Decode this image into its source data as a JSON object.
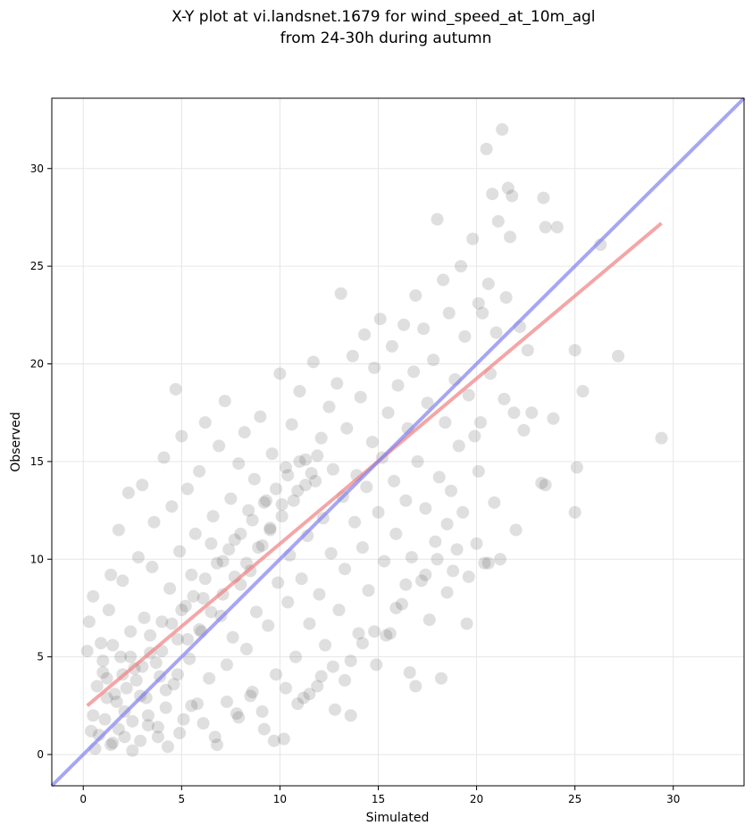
{
  "chart_data": {
    "type": "scatter",
    "title": "X-Y plot at vi.landsnet.1679 for wind_speed_at_10m_agl\nfrom 24-30h during autumn",
    "xlabel": "Simulated",
    "ylabel": "Observed",
    "xlim": [
      -1.6,
      33.6
    ],
    "ylim": [
      -1.6,
      33.6
    ],
    "xticks": [
      0,
      5,
      10,
      15,
      20,
      25,
      30
    ],
    "yticks": [
      0,
      5,
      10,
      15,
      20,
      25,
      30
    ],
    "grid": true,
    "legend": "none",
    "points_sample": [
      [
        0.2,
        5.3
      ],
      [
        0.3,
        6.8
      ],
      [
        0.5,
        8.1
      ],
      [
        0.5,
        2.0
      ],
      [
        0.7,
        3.5
      ],
      [
        0.8,
        1.0
      ],
      [
        0.9,
        5.7
      ],
      [
        1.0,
        4.2
      ],
      [
        1.2,
        2.9
      ],
      [
        1.3,
        7.4
      ],
      [
        1.4,
        9.2
      ],
      [
        1.5,
        0.6
      ],
      [
        1.6,
        3.1
      ],
      [
        1.8,
        11.5
      ],
      [
        1.9,
        5.0
      ],
      [
        2.0,
        8.9
      ],
      [
        2.1,
        2.2
      ],
      [
        2.3,
        13.4
      ],
      [
        2.4,
        6.3
      ],
      [
        2.5,
        0.2
      ],
      [
        2.6,
        4.4
      ],
      [
        2.8,
        10.1
      ],
      [
        2.9,
        3.0
      ],
      [
        3.0,
        13.8
      ],
      [
        3.1,
        7.0
      ],
      [
        3.3,
        1.5
      ],
      [
        3.4,
        5.2
      ],
      [
        3.5,
        9.6
      ],
      [
        3.6,
        11.9
      ],
      [
        3.8,
        0.9
      ],
      [
        3.9,
        4.0
      ],
      [
        4.0,
        6.8
      ],
      [
        4.1,
        15.2
      ],
      [
        4.2,
        2.4
      ],
      [
        4.4,
        8.5
      ],
      [
        4.5,
        12.7
      ],
      [
        4.6,
        3.6
      ],
      [
        4.7,
        18.7
      ],
      [
        4.8,
        5.9
      ],
      [
        4.9,
        10.4
      ],
      [
        5.0,
        16.3
      ],
      [
        5.1,
        1.8
      ],
      [
        5.2,
        7.6
      ],
      [
        5.3,
        13.6
      ],
      [
        5.4,
        4.9
      ],
      [
        5.5,
        9.2
      ],
      [
        5.7,
        11.3
      ],
      [
        5.8,
        2.6
      ],
      [
        5.9,
        14.5
      ],
      [
        6.0,
        6.3
      ],
      [
        6.1,
        8.0
      ],
      [
        6.2,
        17.0
      ],
      [
        6.4,
        3.9
      ],
      [
        6.5,
        10.8
      ],
      [
        6.6,
        12.2
      ],
      [
        6.8,
        0.5
      ],
      [
        6.9,
        15.8
      ],
      [
        7.0,
        7.1
      ],
      [
        7.1,
        9.9
      ],
      [
        7.2,
        18.1
      ],
      [
        7.3,
        4.6
      ],
      [
        7.5,
        13.1
      ],
      [
        7.6,
        6.0
      ],
      [
        7.7,
        11.0
      ],
      [
        7.8,
        2.1
      ],
      [
        7.9,
        14.9
      ],
      [
        8.0,
        8.7
      ],
      [
        8.2,
        16.5
      ],
      [
        8.3,
        5.4
      ],
      [
        8.4,
        12.5
      ],
      [
        8.5,
        9.4
      ],
      [
        8.6,
        3.2
      ],
      [
        8.7,
        14.1
      ],
      [
        8.8,
        7.3
      ],
      [
        9.0,
        17.3
      ],
      [
        9.1,
        10.7
      ],
      [
        9.2,
        1.3
      ],
      [
        9.3,
        13.0
      ],
      [
        9.4,
        6.6
      ],
      [
        9.5,
        11.6
      ],
      [
        9.6,
        15.4
      ],
      [
        9.8,
        4.1
      ],
      [
        9.9,
        8.8
      ],
      [
        10.0,
        19.5
      ],
      [
        10.1,
        12.8
      ],
      [
        10.2,
        0.8
      ],
      [
        10.3,
        14.7
      ],
      [
        10.4,
        7.8
      ],
      [
        10.5,
        10.2
      ],
      [
        10.6,
        16.9
      ],
      [
        10.8,
        5.0
      ],
      [
        10.9,
        13.5
      ],
      [
        11.0,
        18.6
      ],
      [
        11.1,
        9.0
      ],
      [
        11.2,
        2.9
      ],
      [
        11.3,
        15.1
      ],
      [
        11.4,
        11.2
      ],
      [
        11.5,
        6.7
      ],
      [
        11.7,
        20.1
      ],
      [
        11.8,
        14.0
      ],
      [
        11.9,
        3.5
      ],
      [
        12.0,
        8.2
      ],
      [
        12.1,
        16.2
      ],
      [
        12.2,
        12.1
      ],
      [
        12.3,
        5.6
      ],
      [
        12.5,
        17.8
      ],
      [
        12.6,
        10.3
      ],
      [
        12.7,
        14.6
      ],
      [
        12.8,
        2.3
      ],
      [
        12.9,
        19.0
      ],
      [
        13.0,
        7.4
      ],
      [
        13.1,
        23.6
      ],
      [
        13.2,
        13.2
      ],
      [
        13.3,
        9.5
      ],
      [
        13.4,
        16.7
      ],
      [
        13.6,
        4.8
      ],
      [
        13.7,
        20.4
      ],
      [
        13.8,
        11.9
      ],
      [
        13.9,
        14.3
      ],
      [
        14.0,
        6.2
      ],
      [
        14.1,
        18.3
      ],
      [
        14.2,
        10.6
      ],
      [
        14.3,
        21.5
      ],
      [
        14.4,
        13.7
      ],
      [
        14.5,
        8.4
      ],
      [
        14.7,
        16.0
      ],
      [
        14.8,
        19.8
      ],
      [
        14.9,
        4.6
      ],
      [
        15.0,
        12.4
      ],
      [
        15.1,
        22.3
      ],
      [
        15.2,
        15.2
      ],
      [
        15.3,
        9.9
      ],
      [
        15.5,
        17.5
      ],
      [
        15.6,
        6.2
      ],
      [
        15.7,
        20.9
      ],
      [
        15.8,
        14.0
      ],
      [
        15.9,
        11.3
      ],
      [
        16.0,
        18.9
      ],
      [
        16.2,
        7.7
      ],
      [
        16.3,
        22.0
      ],
      [
        16.4,
        13.0
      ],
      [
        16.5,
        16.7
      ],
      [
        16.6,
        4.2
      ],
      [
        16.7,
        10.1
      ],
      [
        16.8,
        19.6
      ],
      [
        16.9,
        23.5
      ],
      [
        17.0,
        15.0
      ],
      [
        17.2,
        8.9
      ],
      [
        17.3,
        21.8
      ],
      [
        17.4,
        12.6
      ],
      [
        17.5,
        18.0
      ],
      [
        17.6,
        6.9
      ],
      [
        17.8,
        20.2
      ],
      [
        17.9,
        10.9
      ],
      [
        18.0,
        27.4
      ],
      [
        18.1,
        14.2
      ],
      [
        18.2,
        3.9
      ],
      [
        18.3,
        24.3
      ],
      [
        18.4,
        17.0
      ],
      [
        18.5,
        11.8
      ],
      [
        18.6,
        22.6
      ],
      [
        18.7,
        13.5
      ],
      [
        18.8,
        9.4
      ],
      [
        18.9,
        19.2
      ],
      [
        19.1,
        15.8
      ],
      [
        19.2,
        25.0
      ],
      [
        19.3,
        12.4
      ],
      [
        19.4,
        21.4
      ],
      [
        19.5,
        6.7
      ],
      [
        19.6,
        18.4
      ],
      [
        19.8,
        26.4
      ],
      [
        19.9,
        16.3
      ],
      [
        20.0,
        10.8
      ],
      [
        20.1,
        23.1
      ],
      [
        20.2,
        17.0
      ],
      [
        20.3,
        22.6
      ],
      [
        20.4,
        9.8
      ],
      [
        20.5,
        31.0
      ],
      [
        20.6,
        24.1
      ],
      [
        20.7,
        19.5
      ],
      [
        20.8,
        28.7
      ],
      [
        20.9,
        12.9
      ],
      [
        21.0,
        21.6
      ],
      [
        21.1,
        27.3
      ],
      [
        21.2,
        10.0
      ],
      [
        21.3,
        32.0
      ],
      [
        21.4,
        18.2
      ],
      [
        21.5,
        23.4
      ],
      [
        21.6,
        29.0
      ],
      [
        21.7,
        26.5
      ],
      [
        21.8,
        28.6
      ],
      [
        21.9,
        17.5
      ],
      [
        22.0,
        11.5
      ],
      [
        22.2,
        21.9
      ],
      [
        22.4,
        16.6
      ],
      [
        22.6,
        20.7
      ],
      [
        22.8,
        17.5
      ],
      [
        23.3,
        13.9
      ],
      [
        23.4,
        28.5
      ],
      [
        23.5,
        27.0
      ],
      [
        23.9,
        17.2
      ],
      [
        24.1,
        27.0
      ],
      [
        25.0,
        20.7
      ],
      [
        25.1,
        14.7
      ],
      [
        25.0,
        12.4
      ],
      [
        25.4,
        18.6
      ],
      [
        26.3,
        26.1
      ],
      [
        27.2,
        20.4
      ],
      [
        29.4,
        16.2
      ],
      [
        23.5,
        13.8
      ],
      [
        1.0,
        4.8
      ],
      [
        1.2,
        3.9
      ],
      [
        1.5,
        5.6
      ],
      [
        1.7,
        2.7
      ],
      [
        2.0,
        4.1
      ],
      [
        2.2,
        3.4
      ],
      [
        2.4,
        5.0
      ],
      [
        2.7,
        3.8
      ],
      [
        3.0,
        4.5
      ],
      [
        3.2,
        2.9
      ],
      [
        3.4,
        6.1
      ],
      [
        3.7,
        4.7
      ],
      [
        4.0,
        5.3
      ],
      [
        4.2,
        3.3
      ],
      [
        4.5,
        6.7
      ],
      [
        4.8,
        4.1
      ],
      [
        5.0,
        7.4
      ],
      [
        5.3,
        5.9
      ],
      [
        5.6,
        8.1
      ],
      [
        5.9,
        6.4
      ],
      [
        6.2,
        9.0
      ],
      [
        6.5,
        7.3
      ],
      [
        6.8,
        9.8
      ],
      [
        7.1,
        8.2
      ],
      [
        7.4,
        10.5
      ],
      [
        7.7,
        9.1
      ],
      [
        8.0,
        11.3
      ],
      [
        8.3,
        9.8
      ],
      [
        8.6,
        12.0
      ],
      [
        8.9,
        10.6
      ],
      [
        9.2,
        12.9
      ],
      [
        9.5,
        11.5
      ],
      [
        9.8,
        13.6
      ],
      [
        10.1,
        12.2
      ],
      [
        10.4,
        14.3
      ],
      [
        10.7,
        13.0
      ],
      [
        11.0,
        15.0
      ],
      [
        11.3,
        13.8
      ],
      [
        11.6,
        14.4
      ],
      [
        11.9,
        15.3
      ],
      [
        0.4,
        1.2
      ],
      [
        0.6,
        0.3
      ],
      [
        1.1,
        1.8
      ],
      [
        1.4,
        0.5
      ],
      [
        1.8,
        1.3
      ],
      [
        2.1,
        0.9
      ],
      [
        2.5,
        1.7
      ],
      [
        2.9,
        0.7
      ],
      [
        3.3,
        2.0
      ],
      [
        3.8,
        1.4
      ],
      [
        4.3,
        0.4
      ],
      [
        4.9,
        1.1
      ],
      [
        5.5,
        2.5
      ],
      [
        6.1,
        1.6
      ],
      [
        6.7,
        0.9
      ],
      [
        7.3,
        2.7
      ],
      [
        7.9,
        1.9
      ],
      [
        8.5,
        3.0
      ],
      [
        9.1,
        2.2
      ],
      [
        9.7,
        0.7
      ],
      [
        10.3,
        3.4
      ],
      [
        10.9,
        2.6
      ],
      [
        11.5,
        3.1
      ],
      [
        12.1,
        4.0
      ],
      [
        12.7,
        4.5
      ],
      [
        13.3,
        3.8
      ],
      [
        13.6,
        2.0
      ],
      [
        14.2,
        5.7
      ],
      [
        14.8,
        6.3
      ],
      [
        15.4,
        6.1
      ],
      [
        15.9,
        7.5
      ],
      [
        16.4,
        8.7
      ],
      [
        16.9,
        3.5
      ],
      [
        17.4,
        9.2
      ],
      [
        18.0,
        10.0
      ],
      [
        18.5,
        8.3
      ],
      [
        19.0,
        10.5
      ],
      [
        19.6,
        9.1
      ],
      [
        20.1,
        14.5
      ],
      [
        20.6,
        9.8
      ]
    ],
    "series": [
      {
        "type": "regression",
        "color": "#f08080",
        "x": [
          0.2,
          29.4
        ],
        "y": [
          2.5,
          27.2
        ]
      },
      {
        "type": "identity",
        "color": "#8080f0",
        "x": [
          -1.6,
          33.6
        ],
        "y": [
          -1.6,
          33.6
        ]
      }
    ],
    "marker_color": "#4d4d4d"
  }
}
